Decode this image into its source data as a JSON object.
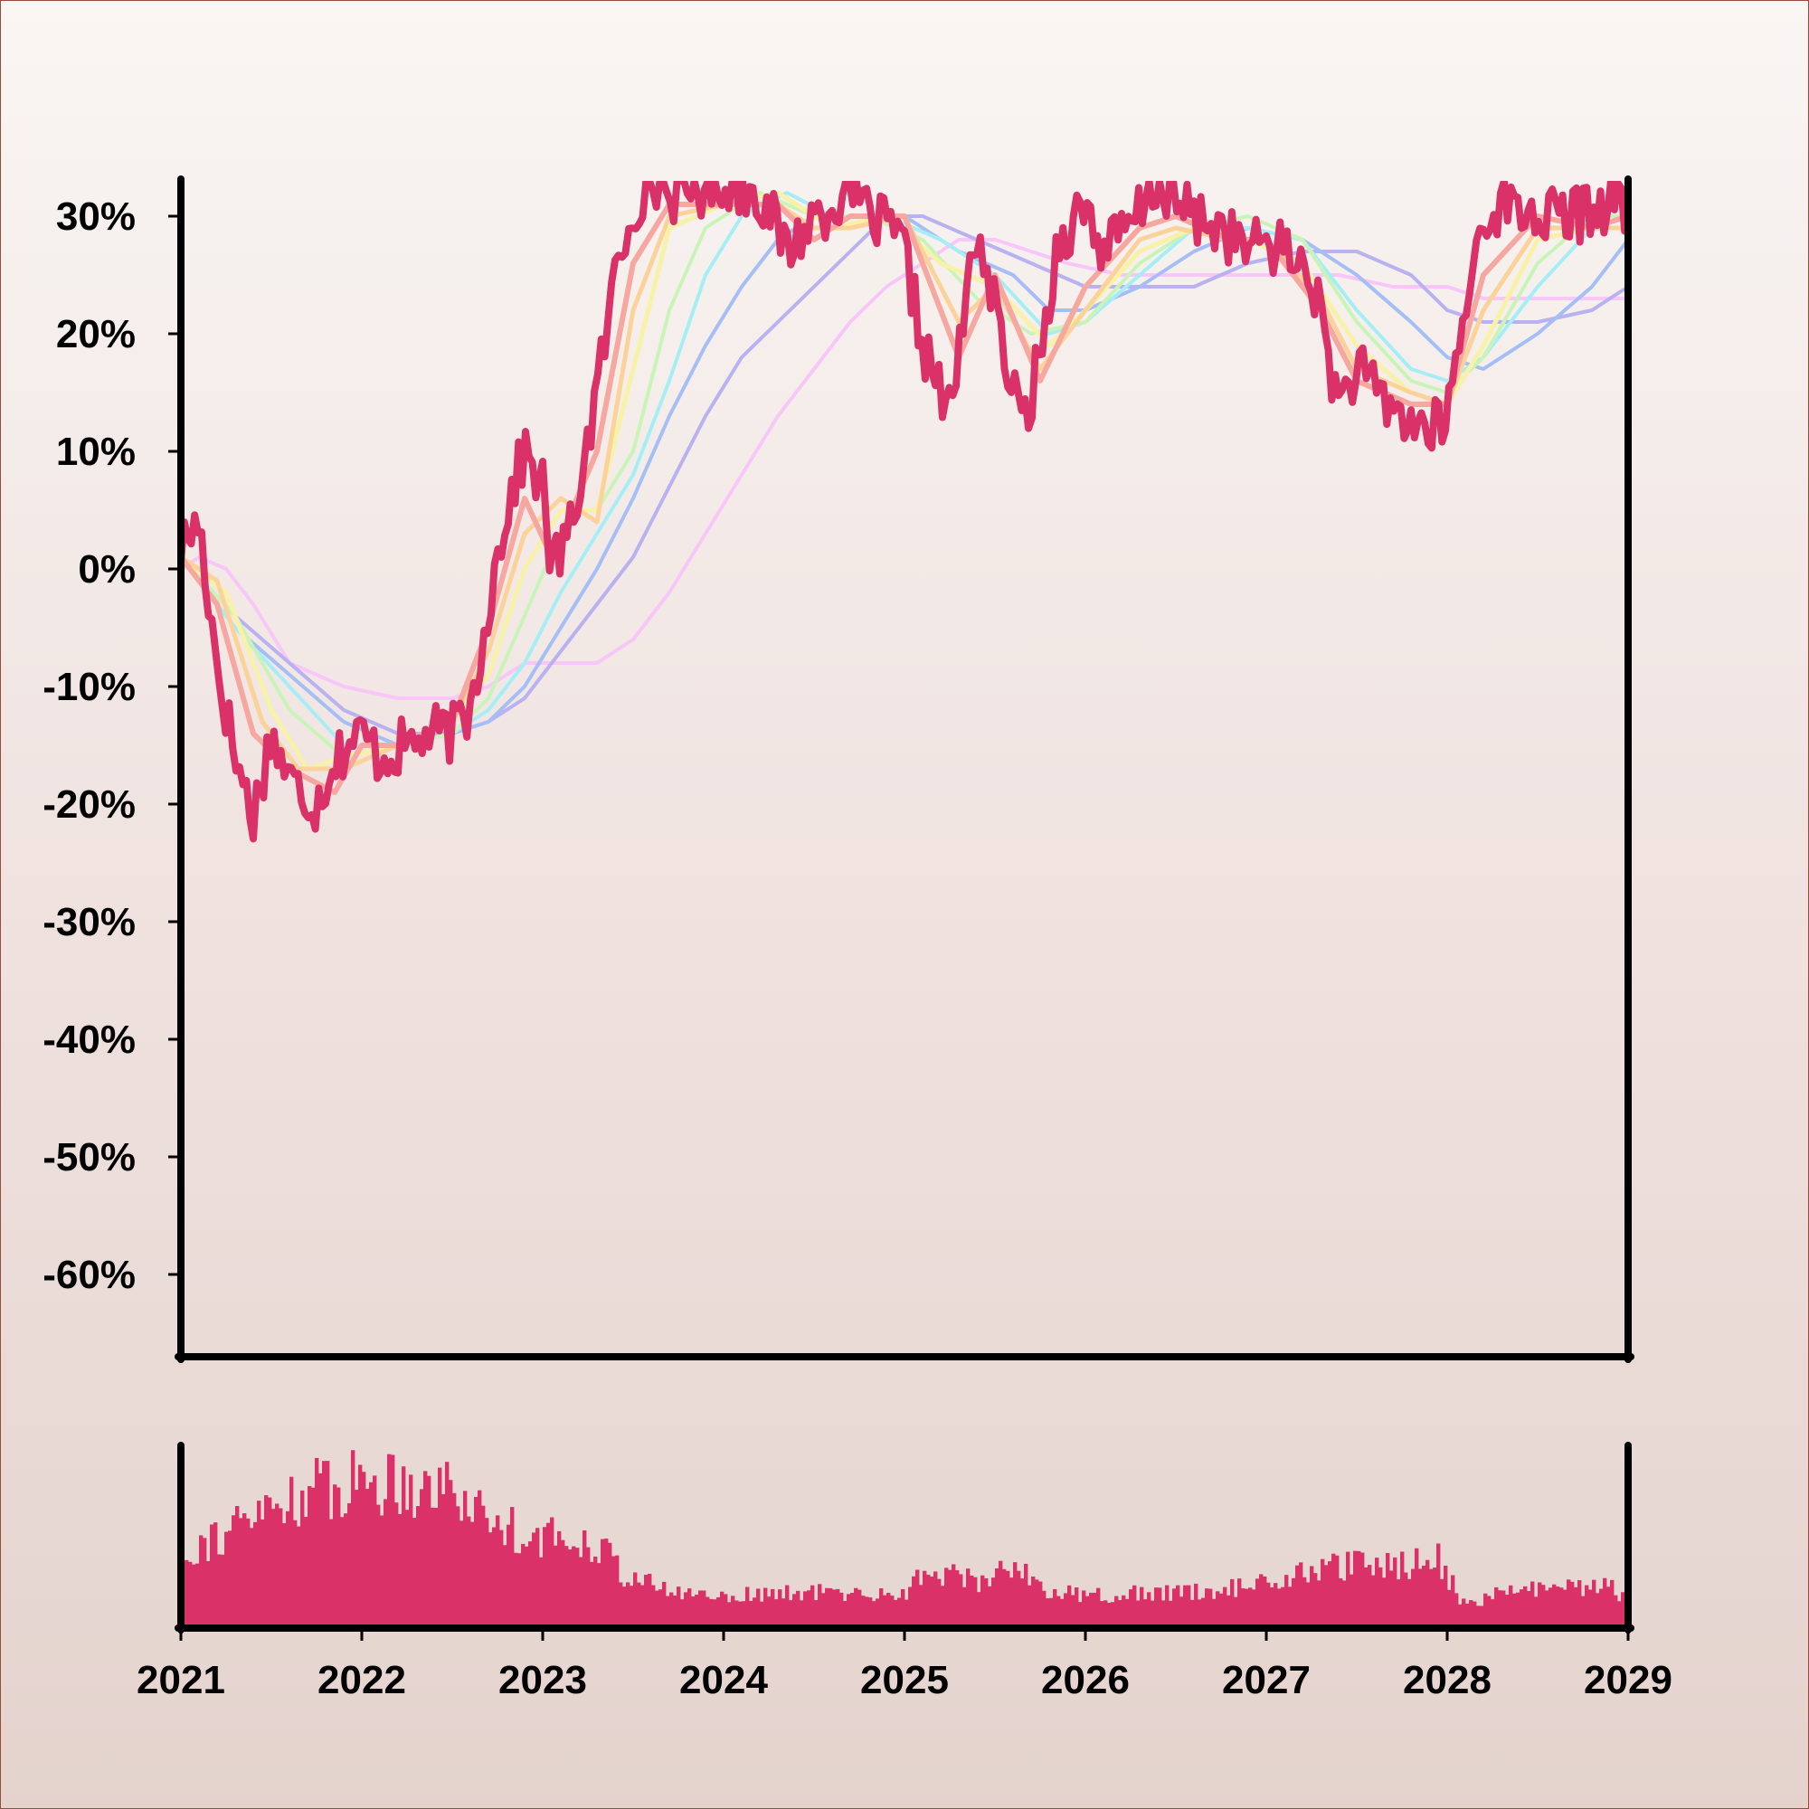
{
  "chart_data": [
    {
      "type": "line",
      "title": "",
      "xlabel": "",
      "ylabel": "",
      "xlim": [
        2021.0,
        2029.0
      ],
      "ylim": [
        -67,
        33
      ],
      "y_ticks": [
        30,
        20,
        10,
        0,
        -10,
        -20,
        -30,
        -40,
        -50,
        -60
      ],
      "y_tick_labels": [
        "30%",
        "20%",
        "10%",
        "0%",
        "-10%",
        "-20%",
        "-30%",
        "-40%",
        "-50%",
        "-60%"
      ],
      "grid": false,
      "legend": "none",
      "series": [
        {
          "color": "#d93168",
          "x": [
            2021.0,
            2021.1,
            2021.2,
            2021.3,
            2021.4,
            2021.5,
            2021.6,
            2021.75,
            2021.85,
            2022.0,
            2022.1,
            2022.25,
            2022.4,
            2022.5,
            2022.6,
            2022.7,
            2022.8,
            2022.9,
            2023.0,
            2023.05,
            2023.15,
            2023.3,
            2023.4,
            2023.5,
            2023.6,
            2023.7,
            2023.8,
            2024.0,
            2024.2,
            2024.35,
            2024.5,
            2024.6,
            2024.7,
            2024.8,
            2024.9,
            2025.0,
            2025.1,
            2025.25,
            2025.4,
            2025.5,
            2025.6,
            2025.65,
            2025.75,
            2025.85,
            2026.0,
            2026.1,
            2026.25,
            2026.4,
            2026.5,
            2026.6,
            2026.75,
            2026.9,
            2027.0,
            2027.1,
            2027.25,
            2027.4,
            2027.5,
            2027.6,
            2027.75,
            2027.85,
            2027.95,
            2028.0,
            2028.1,
            2028.2,
            2028.3,
            2028.5,
            2028.7,
            2028.85,
            2029.0
          ],
          "y": [
            2,
            4,
            -8,
            -16,
            -21,
            -14,
            -18,
            -20,
            -16,
            -14,
            -16,
            -15,
            -14,
            -14,
            -12,
            -3,
            5,
            10,
            7,
            0,
            3,
            15,
            25,
            31,
            33,
            32,
            32,
            33,
            32,
            27,
            30,
            31,
            33,
            30,
            29,
            27,
            19,
            13,
            29,
            22,
            15,
            12,
            18,
            28,
            31,
            27,
            29,
            33,
            31,
            30,
            29,
            27,
            28,
            27,
            25,
            14,
            17,
            15,
            13,
            12,
            12,
            13,
            22,
            30,
            31,
            30,
            30,
            31,
            31
          ]
        },
        {
          "color": "#f6a8a0",
          "x": [
            2021.0,
            2021.2,
            2021.4,
            2021.6,
            2021.85,
            2022.0,
            2022.2,
            2022.5,
            2022.7,
            2022.9,
            2023.05,
            2023.3,
            2023.5,
            2023.7,
            2024.0,
            2024.3,
            2024.5,
            2024.7,
            2025.0,
            2025.3,
            2025.5,
            2025.75,
            2026.0,
            2026.3,
            2026.5,
            2026.8,
            2027.0,
            2027.3,
            2027.5,
            2027.8,
            2028.0,
            2028.2,
            2028.5,
            2028.8,
            2029.0
          ],
          "y": [
            1,
            -3,
            -14,
            -17,
            -19,
            -15,
            -15,
            -13,
            -5,
            6,
            1,
            10,
            26,
            31,
            31,
            31,
            28,
            30,
            30,
            18,
            25,
            16,
            24,
            29,
            30,
            28,
            28,
            22,
            16,
            14,
            14,
            25,
            30,
            29,
            30
          ]
        },
        {
          "color": "#fbd39a",
          "x": [
            2021.0,
            2021.2,
            2021.45,
            2021.65,
            2021.9,
            2022.2,
            2022.5,
            2022.7,
            2022.9,
            2023.1,
            2023.3,
            2023.5,
            2023.7,
            2024.0,
            2024.3,
            2024.5,
            2024.7,
            2025.0,
            2025.3,
            2025.5,
            2025.75,
            2026.0,
            2026.3,
            2026.5,
            2026.8,
            2027.0,
            2027.3,
            2027.5,
            2027.8,
            2028.0,
            2028.2,
            2028.5,
            2028.8,
            2029.0
          ],
          "y": [
            1,
            -1,
            -13,
            -17,
            -17,
            -15,
            -13,
            -7,
            3,
            6,
            4,
            22,
            30,
            31,
            31,
            29,
            29,
            30,
            21,
            24,
            17,
            22,
            28,
            29,
            28,
            28,
            23,
            17,
            15,
            14,
            22,
            29,
            29,
            29
          ]
        },
        {
          "color": "#f8f1a8",
          "x": [
            2021.0,
            2021.25,
            2021.5,
            2021.7,
            2021.9,
            2022.2,
            2022.5,
            2022.7,
            2022.9,
            2023.1,
            2023.3,
            2023.5,
            2023.7,
            2024.0,
            2024.3,
            2024.6,
            2024.9,
            2025.2,
            2025.5,
            2025.8,
            2026.0,
            2026.3,
            2026.6,
            2026.9,
            2027.2,
            2027.5,
            2027.8,
            2028.0,
            2028.2,
            2028.5,
            2028.8,
            2029.0
          ],
          "y": [
            1,
            -2,
            -12,
            -17,
            -16,
            -15,
            -13,
            -9,
            0,
            5,
            5,
            17,
            29,
            31,
            32,
            29,
            30,
            26,
            24,
            19,
            22,
            27,
            29,
            28,
            26,
            19,
            15,
            14,
            19,
            28,
            29,
            29
          ]
        },
        {
          "color": "#c9f4b8",
          "x": [
            2021.0,
            2021.3,
            2021.6,
            2021.9,
            2022.2,
            2022.5,
            2022.7,
            2022.9,
            2023.15,
            2023.3,
            2023.5,
            2023.7,
            2023.9,
            2024.2,
            2024.5,
            2024.8,
            2025.1,
            2025.4,
            2025.7,
            2026.0,
            2026.3,
            2026.6,
            2026.9,
            2027.2,
            2027.5,
            2027.8,
            2028.0,
            2028.2,
            2028.5,
            2028.8,
            2029.0
          ],
          "y": [
            1,
            -4,
            -12,
            -16,
            -15,
            -14,
            -11,
            -4,
            5,
            5,
            10,
            22,
            29,
            32,
            30,
            30,
            28,
            23,
            20,
            21,
            26,
            29,
            30,
            28,
            21,
            16,
            15,
            18,
            26,
            30,
            30
          ]
        },
        {
          "color": "#a6eef6",
          "x": [
            2021.0,
            2021.3,
            2021.6,
            2021.9,
            2022.2,
            2022.5,
            2022.7,
            2022.9,
            2023.1,
            2023.3,
            2023.5,
            2023.7,
            2023.9,
            2024.1,
            2024.35,
            2024.6,
            2024.9,
            2025.2,
            2025.5,
            2025.8,
            2026.0,
            2026.3,
            2026.6,
            2026.9,
            2027.2,
            2027.5,
            2027.8,
            2028.0,
            2028.2,
            2028.5,
            2028.8,
            2029.0
          ],
          "y": [
            1,
            -5,
            -10,
            -15,
            -15,
            -14,
            -12,
            -8,
            -2,
            3,
            8,
            16,
            25,
            30,
            32,
            30,
            30,
            28,
            25,
            20,
            21,
            25,
            29,
            29,
            28,
            22,
            17,
            16,
            18,
            24,
            29,
            30
          ]
        },
        {
          "color": "#a6bef6",
          "x": [
            2021.0,
            2021.3,
            2021.6,
            2021.9,
            2022.2,
            2022.5,
            2022.7,
            2022.9,
            2023.1,
            2023.3,
            2023.5,
            2023.7,
            2023.9,
            2024.1,
            2024.3,
            2024.5,
            2024.8,
            2025.0,
            2025.3,
            2025.6,
            2025.8,
            2026.0,
            2026.3,
            2026.6,
            2026.9,
            2027.2,
            2027.5,
            2027.8,
            2028.0,
            2028.2,
            2028.5,
            2028.8,
            2029.0
          ],
          "y": [
            1,
            -5,
            -9,
            -13,
            -15,
            -14,
            -13,
            -10,
            -5,
            0,
            6,
            13,
            19,
            24,
            28,
            30,
            30,
            30,
            27,
            25,
            22,
            22,
            24,
            27,
            29,
            28,
            25,
            21,
            18,
            17,
            20,
            24,
            28
          ]
        },
        {
          "color": "#b8b2f0",
          "x": [
            2021.0,
            2021.3,
            2021.6,
            2021.9,
            2022.2,
            2022.5,
            2022.7,
            2022.9,
            2023.1,
            2023.3,
            2023.5,
            2023.7,
            2023.9,
            2024.1,
            2024.3,
            2024.5,
            2024.7,
            2024.9,
            2025.1,
            2025.4,
            2025.7,
            2026.0,
            2026.3,
            2026.6,
            2026.9,
            2027.2,
            2027.5,
            2027.8,
            2028.0,
            2028.2,
            2028.5,
            2028.8,
            2029.0
          ],
          "y": [
            1,
            -4,
            -8,
            -12,
            -14,
            -14,
            -13,
            -11,
            -7,
            -3,
            1,
            7,
            13,
            18,
            21,
            24,
            27,
            30,
            30,
            28,
            26,
            24,
            24,
            24,
            26,
            27,
            27,
            25,
            22,
            21,
            21,
            22,
            24
          ]
        },
        {
          "color": "#f8c6f8",
          "x": [
            2021.0,
            2021.1,
            2021.25,
            2021.4,
            2021.6,
            2021.9,
            2022.2,
            2022.5,
            2022.7,
            2022.9,
            2023.1,
            2023.3,
            2023.5,
            2023.7,
            2023.9,
            2024.1,
            2024.3,
            2024.5,
            2024.7,
            2024.9,
            2025.1,
            2025.3,
            2025.5,
            2025.7,
            2025.9,
            2026.2,
            2026.5,
            2026.8,
            2027.1,
            2027.4,
            2027.7,
            2028.0,
            2028.2,
            2028.5,
            2028.8,
            2029.0
          ],
          "y": [
            0,
            1,
            0,
            -3,
            -8,
            -10,
            -11,
            -11,
            -10,
            -8,
            -8,
            -8,
            -6,
            -2,
            3,
            8,
            13,
            17,
            21,
            24,
            26,
            28,
            28,
            27,
            26,
            25,
            25,
            25,
            25,
            25,
            24,
            24,
            23,
            23,
            23,
            23
          ]
        }
      ]
    },
    {
      "type": "bar",
      "title": "",
      "xlabel": "",
      "ylabel": "",
      "xlim": [
        2021.0,
        2029.0
      ],
      "x_ticks": [
        2021,
        2022,
        2023,
        2024,
        2025,
        2026,
        2027,
        2028,
        2029
      ],
      "x_tick_labels": [
        "2021",
        "2022",
        "2023",
        "2024",
        "2025",
        "2026",
        "2027",
        "2028",
        "2029"
      ],
      "color": "#d93168",
      "bar_count": 400,
      "level_profile": {
        "x": [
          2021.0,
          2021.05,
          2021.3,
          2021.6,
          2021.9,
          2022.2,
          2022.5,
          2022.7,
          2023.0,
          2023.3,
          2023.45,
          2023.7,
          2024.0,
          2024.3,
          2024.6,
          2024.8,
          2025.0,
          2025.15,
          2025.4,
          2025.6,
          2025.8,
          2026.0,
          2026.3,
          2026.6,
          2026.8,
          2027.0,
          2027.2,
          2027.4,
          2027.7,
          2027.95,
          2028.1,
          2028.3,
          2028.6,
          2028.9,
          2029.0
        ],
        "y": [
          0.25,
          0.45,
          0.55,
          0.72,
          0.8,
          0.82,
          0.78,
          0.6,
          0.5,
          0.48,
          0.3,
          0.2,
          0.18,
          0.19,
          0.2,
          0.18,
          0.2,
          0.33,
          0.25,
          0.36,
          0.2,
          0.18,
          0.19,
          0.2,
          0.22,
          0.25,
          0.3,
          0.34,
          0.35,
          0.38,
          0.12,
          0.2,
          0.22,
          0.23,
          0.15
        ]
      }
    }
  ]
}
